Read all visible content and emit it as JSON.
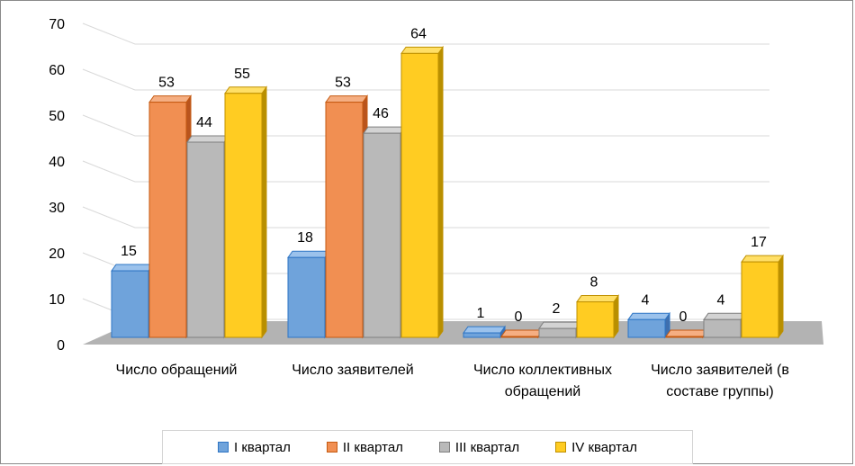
{
  "chart_data": {
    "type": "bar",
    "categories": [
      [
        "Число обращений"
      ],
      [
        "Число заявителей"
      ],
      [
        "Число коллективных",
        "обращений"
      ],
      [
        "Число заявителей (в",
        "составе группы)"
      ]
    ],
    "series": [
      {
        "name": "I квартал",
        "values": [
          15,
          18,
          1,
          4
        ]
      },
      {
        "name": "II квартал",
        "values": [
          53,
          53,
          0,
          0
        ]
      },
      {
        "name": "III квартал",
        "values": [
          44,
          46,
          2,
          4
        ]
      },
      {
        "name": "IV квартал",
        "values": [
          55,
          64,
          8,
          17
        ]
      }
    ],
    "ylim": [
      0,
      70
    ],
    "yticks": [
      0,
      10,
      20,
      30,
      40,
      50,
      60,
      70
    ],
    "colors": {
      "front": [
        "#6fa3db",
        "#f18f52",
        "#b9b9b9",
        "#ffcc22"
      ],
      "side": [
        "#3f6fae",
        "#b9541d",
        "#7b7b7b",
        "#b88f00"
      ],
      "top": [
        "#9bc2ec",
        "#f5ae82",
        "#d3d3d3",
        "#ffdf66"
      ],
      "stroke": [
        "#2e75c4",
        "#c55a11",
        "#7f7f7f",
        "#bf9000"
      ]
    },
    "grid": true,
    "legend_position": "bottom"
  }
}
